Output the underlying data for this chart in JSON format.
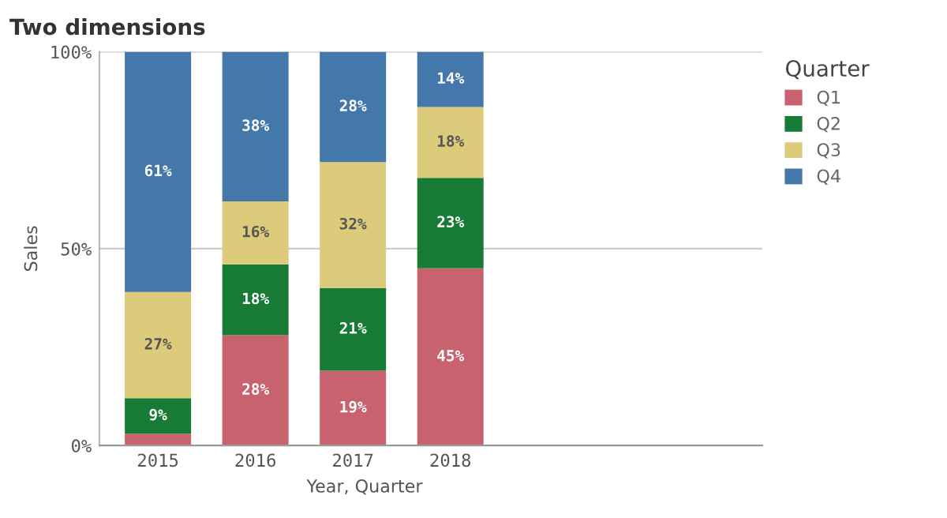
{
  "chart_data": {
    "type": "bar",
    "title": "Two dimensions",
    "xlabel": "Year, Quarter",
    "ylabel": "Sales",
    "legend_title": "Quarter",
    "categories": [
      "2015",
      "2016",
      "2017",
      "2018"
    ],
    "stacked": true,
    "series": [
      {
        "name": "Q1",
        "color": "#c8626f",
        "values": [
          3,
          28,
          19,
          45
        ],
        "value_labels": [
          null,
          "28%",
          "19%",
          "45%"
        ]
      },
      {
        "name": "Q2",
        "color": "#177b35",
        "values": [
          9,
          18,
          21,
          23
        ],
        "value_labels": [
          "9%",
          "18%",
          "21%",
          "23%"
        ]
      },
      {
        "name": "Q3",
        "color": "#dccb7a",
        "values": [
          27,
          16,
          32,
          18
        ],
        "value_labels": [
          "27%",
          "16%",
          "32%",
          "18%"
        ]
      },
      {
        "name": "Q4",
        "color": "#4477aa",
        "values": [
          61,
          38,
          28,
          14
        ],
        "value_labels": [
          "61%",
          "38%",
          "28%",
          "14%"
        ]
      }
    ],
    "ylim": [
      0,
      100
    ],
    "yticks": [
      {
        "value": 0,
        "label": "0%"
      },
      {
        "value": 50,
        "label": "50%"
      },
      {
        "value": 100,
        "label": "100%"
      }
    ],
    "grid": "y",
    "legend": "right"
  }
}
